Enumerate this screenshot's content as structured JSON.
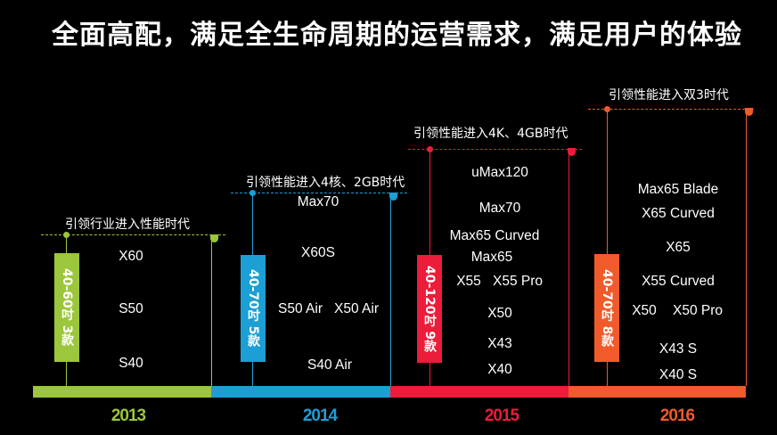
{
  "title": "全面高配，满足全生命周期的运营需求，满足用户的体验",
  "colors": {
    "y2013": "#9cc63b",
    "y2014": "#1b9fd4",
    "y2015": "#ec1c3a",
    "y2016": "#f15a2a"
  },
  "eras": [
    {
      "year": "2013",
      "heading": "引领行业进入性能时代",
      "tag": "40-60吋 3款",
      "models": [
        "X60",
        "S50",
        "S40"
      ]
    },
    {
      "year": "2014",
      "heading": "引领性能进入4核、2GB时代",
      "tag": "40-70吋 5款",
      "models": [
        "Max70",
        "X60S",
        "S50 Air",
        "X50 Air",
        "S40 Air"
      ]
    },
    {
      "year": "2015",
      "heading": "引领性能进入4K、4GB时代",
      "tag": "40-120吋 9款",
      "models": [
        "uMax120",
        "Max70",
        "Max65 Curved",
        "Max65",
        "X55",
        "X55 Pro",
        "X50",
        "X43",
        "X40"
      ]
    },
    {
      "year": "2016",
      "heading": "引领性能进入双3时代",
      "tag": "40-70吋 8款",
      "models": [
        "Max65 Blade",
        "X65 Curved",
        "X65",
        "X55 Curved",
        "X50",
        "X50 Pro",
        "X43 S",
        "X40 S"
      ]
    }
  ]
}
